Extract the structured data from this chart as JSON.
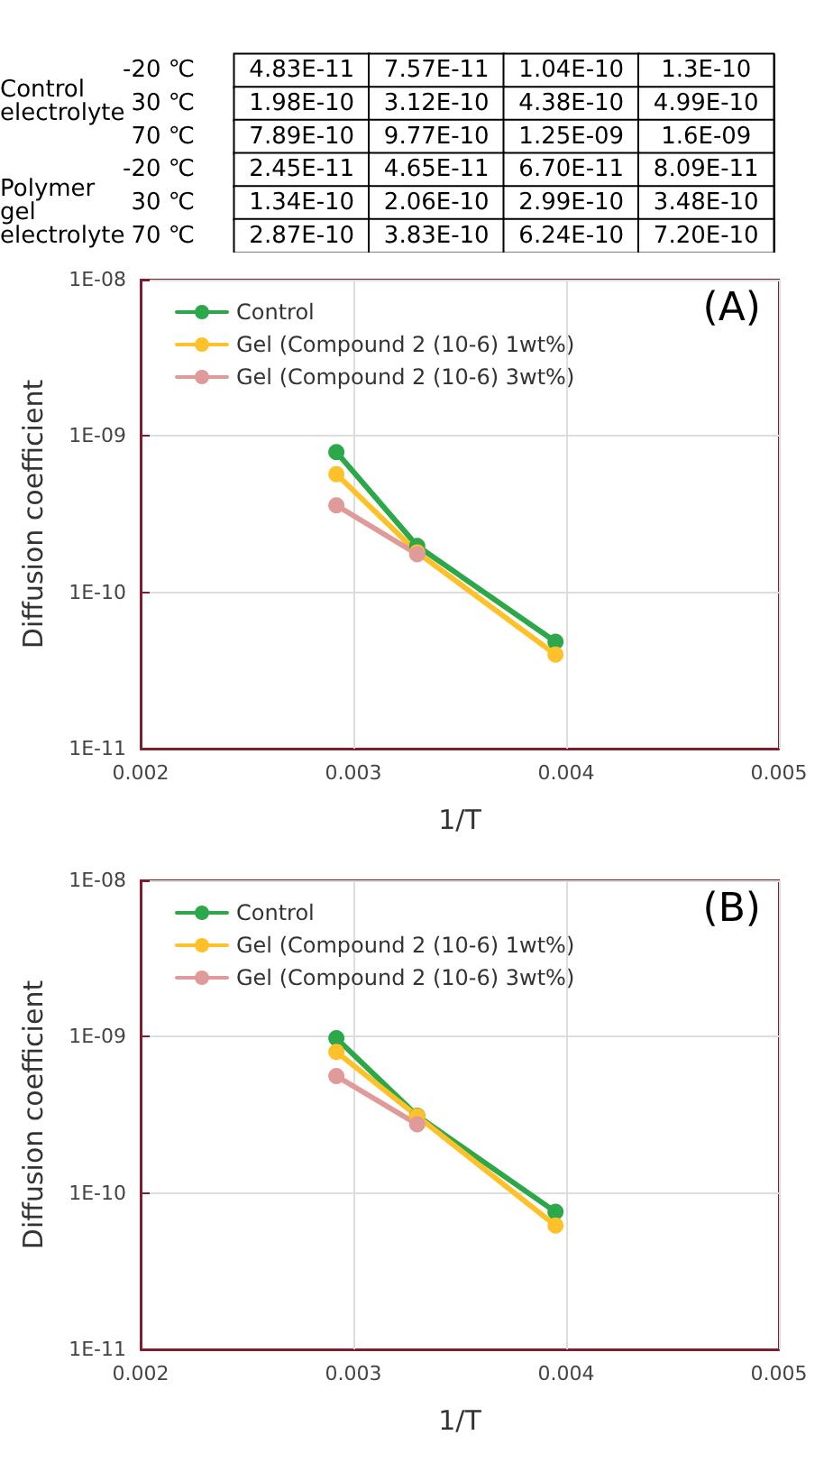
{
  "chart_data": [
    {
      "type": "other",
      "categories": [
        null,
        null,
        null,
        null
      ],
      "y_categories": [
        "-20 ℃",
        "30 ℃",
        "70 ℃",
        "-20 ℃",
        "30 ℃",
        "70 ℃"
      ],
      "annotations": [
        "Control electrolyte",
        "Polymer gel electrolyte"
      ],
      "cell_labels": [
        [
          "4.83E-11",
          "7.57E-11",
          "1.04E-10",
          "1.3E-10"
        ],
        [
          "1.98E-10",
          "3.12E-10",
          "4.38E-10",
          "4.99E-10"
        ],
        [
          "7.89E-10",
          "9.77E-10",
          "1.25E-09",
          "1.6E-09"
        ],
        [
          "2.45E-11",
          "4.65E-11",
          "6.70E-11",
          "8.09E-11"
        ],
        [
          "1.34E-10",
          "2.06E-10",
          "2.99E-10",
          "3.48E-10"
        ],
        [
          "2.87E-10",
          "3.83E-10",
          "6.24E-10",
          "7.20E-10"
        ]
      ]
    },
    {
      "type": "line",
      "xlabel": "1/T",
      "ylabel": "Diffusion coefficient",
      "annotations": [
        "(A)"
      ],
      "log": "y",
      "grid": true,
      "legend": "top left",
      "marker": "circle",
      "line_style": "solid",
      "xlim": [
        0.002,
        0.005
      ],
      "xticks": [
        0.002,
        0.003,
        0.004,
        0.005
      ],
      "ylim": [
        1e-11,
        1e-08
      ],
      "yticks": [
        {
          "value": 1e-11,
          "label": "1E-11"
        },
        {
          "value": 1e-10,
          "label": "1E-10"
        },
        {
          "value": 1e-09,
          "label": "1E-09"
        },
        {
          "value": 1e-08,
          "label": "1E-08"
        }
      ],
      "series": [
        {
          "name": "Control",
          "color": "#2ca84a",
          "x": [
            0.00292,
            0.0033,
            0.00395
          ],
          "values": [
            7.89e-10,
            1.98e-10,
            4.83e-11
          ]
        },
        {
          "name": "Gel (Compound 2 (10-6) 1wt%)",
          "color": "#ffc12a",
          "x": [
            0.00292,
            0.0033,
            0.00395
          ],
          "values": [
            5.7e-10,
            1.8e-10,
            4e-11
          ]
        },
        {
          "name": "Gel (Compound 2 (10-6) 3wt%)",
          "color": "#e09a9a",
          "x": [
            0.00292,
            0.0033
          ],
          "values": [
            3.6e-10,
            1.75e-10
          ]
        }
      ]
    },
    {
      "type": "line",
      "xlabel": "1/T",
      "ylabel": "Diffusion coefficient",
      "annotations": [
        "(B)"
      ],
      "log": "y",
      "grid": true,
      "legend": "top left",
      "marker": "circle",
      "line_style": "solid",
      "xlim": [
        0.002,
        0.005
      ],
      "xticks": [
        0.002,
        0.003,
        0.004,
        0.005
      ],
      "ylim": [
        1e-11,
        1e-08
      ],
      "yticks": [
        {
          "value": 1e-11,
          "label": "1E-11"
        },
        {
          "value": 1e-10,
          "label": "1E-10"
        },
        {
          "value": 1e-09,
          "label": "1E-09"
        },
        {
          "value": 1e-08,
          "label": "1E-08"
        }
      ],
      "series": [
        {
          "name": "Control",
          "color": "#2ca84a",
          "x": [
            0.00292,
            0.0033,
            0.00395
          ],
          "values": [
            9.77e-10,
            3.12e-10,
            7.57e-11
          ]
        },
        {
          "name": "Gel (Compound 2 (10-6) 1wt%)",
          "color": "#ffc12a",
          "x": [
            0.00292,
            0.0033,
            0.00395
          ],
          "values": [
            8e-10,
            3.1e-10,
            6.2e-11
          ]
        },
        {
          "name": "Gel (Compound 2 (10-6) 3wt%)",
          "color": "#e09a9a",
          "x": [
            0.00292,
            0.0033
          ],
          "values": [
            5.6e-10,
            2.75e-10
          ]
        }
      ]
    }
  ]
}
